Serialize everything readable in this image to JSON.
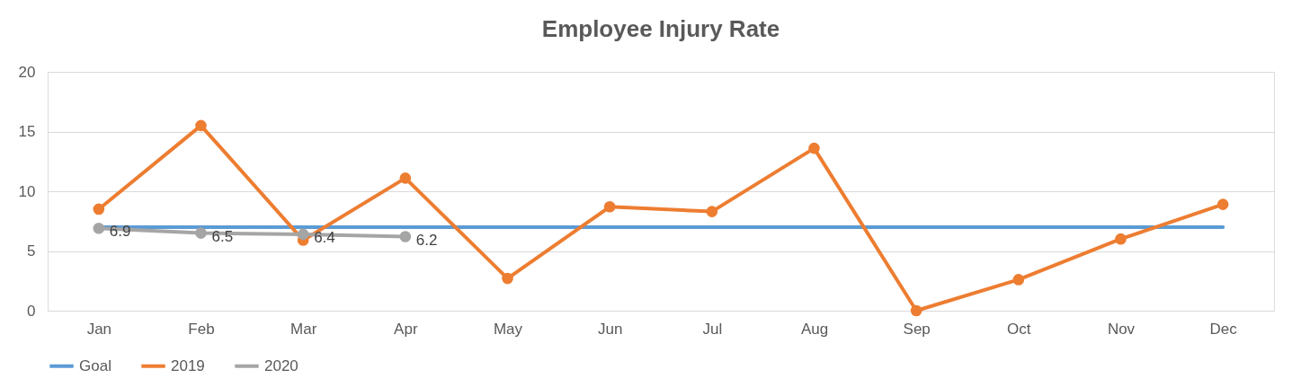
{
  "chart_data": {
    "type": "line",
    "title": "Employee Injury Rate",
    "categories": [
      "Jan",
      "Feb",
      "Mar",
      "Apr",
      "May",
      "Jun",
      "Jul",
      "Aug",
      "Sep",
      "Oct",
      "Nov",
      "Dec"
    ],
    "series": [
      {
        "name": "Goal",
        "color": "#5b9bd5",
        "marker": "none",
        "values": [
          7,
          7,
          7,
          7,
          7,
          7,
          7,
          7,
          7,
          7,
          7,
          7
        ]
      },
      {
        "name": "2019",
        "color": "#ed7d31",
        "marker": "circle",
        "values": [
          8.5,
          15.5,
          5.9,
          11.1,
          2.7,
          8.7,
          8.3,
          13.6,
          0,
          2.6,
          6.0,
          8.9
        ]
      },
      {
        "name": "2020",
        "color": "#a5a5a5",
        "marker": "circle",
        "values": [
          6.9,
          6.5,
          6.4,
          6.2,
          null,
          null,
          null,
          null,
          null,
          null,
          null,
          null
        ],
        "value_labels": [
          "6.9",
          "6.5",
          "6.4",
          "6.2",
          null,
          null,
          null,
          null,
          null,
          null,
          null,
          null
        ]
      }
    ],
    "ylim": [
      0,
      20
    ],
    "yticks": [
      0,
      5,
      10,
      15,
      20
    ],
    "grid": "y",
    "legend": "bottom",
    "line_style": "solid"
  }
}
